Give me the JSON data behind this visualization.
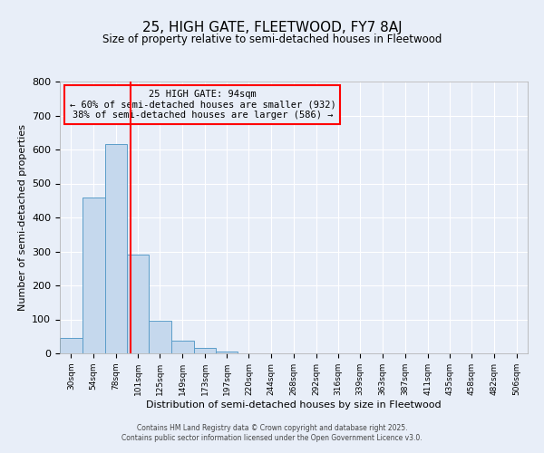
{
  "title": "25, HIGH GATE, FLEETWOOD, FY7 8AJ",
  "subtitle": "Size of property relative to semi-detached houses in Fleetwood",
  "xlabel": "Distribution of semi-detached houses by size in Fleetwood",
  "ylabel": "Number of semi-detached properties",
  "bar_values": [
    45,
    460,
    615,
    290,
    95,
    38,
    15,
    5,
    0,
    0,
    0,
    0,
    0,
    0,
    0,
    0,
    0,
    0,
    0,
    0,
    0
  ],
  "bin_labels": [
    "30sqm",
    "54sqm",
    "78sqm",
    "101sqm",
    "125sqm",
    "149sqm",
    "173sqm",
    "197sqm",
    "220sqm",
    "244sqm",
    "268sqm",
    "292sqm",
    "316sqm",
    "339sqm",
    "363sqm",
    "387sqm",
    "411sqm",
    "435sqm",
    "458sqm",
    "482sqm",
    "506sqm"
  ],
  "bin_edges": [
    18,
    42,
    66,
    90,
    113,
    137,
    161,
    185,
    208,
    232,
    256,
    280,
    304,
    327,
    351,
    375,
    399,
    423,
    446,
    470,
    494,
    518
  ],
  "bar_color": "#c5d8ed",
  "bar_edge_color": "#5b9dc9",
  "vline_x": 94,
  "vline_color": "red",
  "annotation_title": "25 HIGH GATE: 94sqm",
  "annotation_line1": "← 60% of semi-detached houses are smaller (932)",
  "annotation_line2": "38% of semi-detached houses are larger (586) →",
  "annotation_box_color": "red",
  "ylim": [
    0,
    800
  ],
  "yticks": [
    0,
    100,
    200,
    300,
    400,
    500,
    600,
    700,
    800
  ],
  "background_color": "#e8eef8",
  "footer1": "Contains HM Land Registry data © Crown copyright and database right 2025.",
  "footer2": "Contains public sector information licensed under the Open Government Licence v3.0."
}
